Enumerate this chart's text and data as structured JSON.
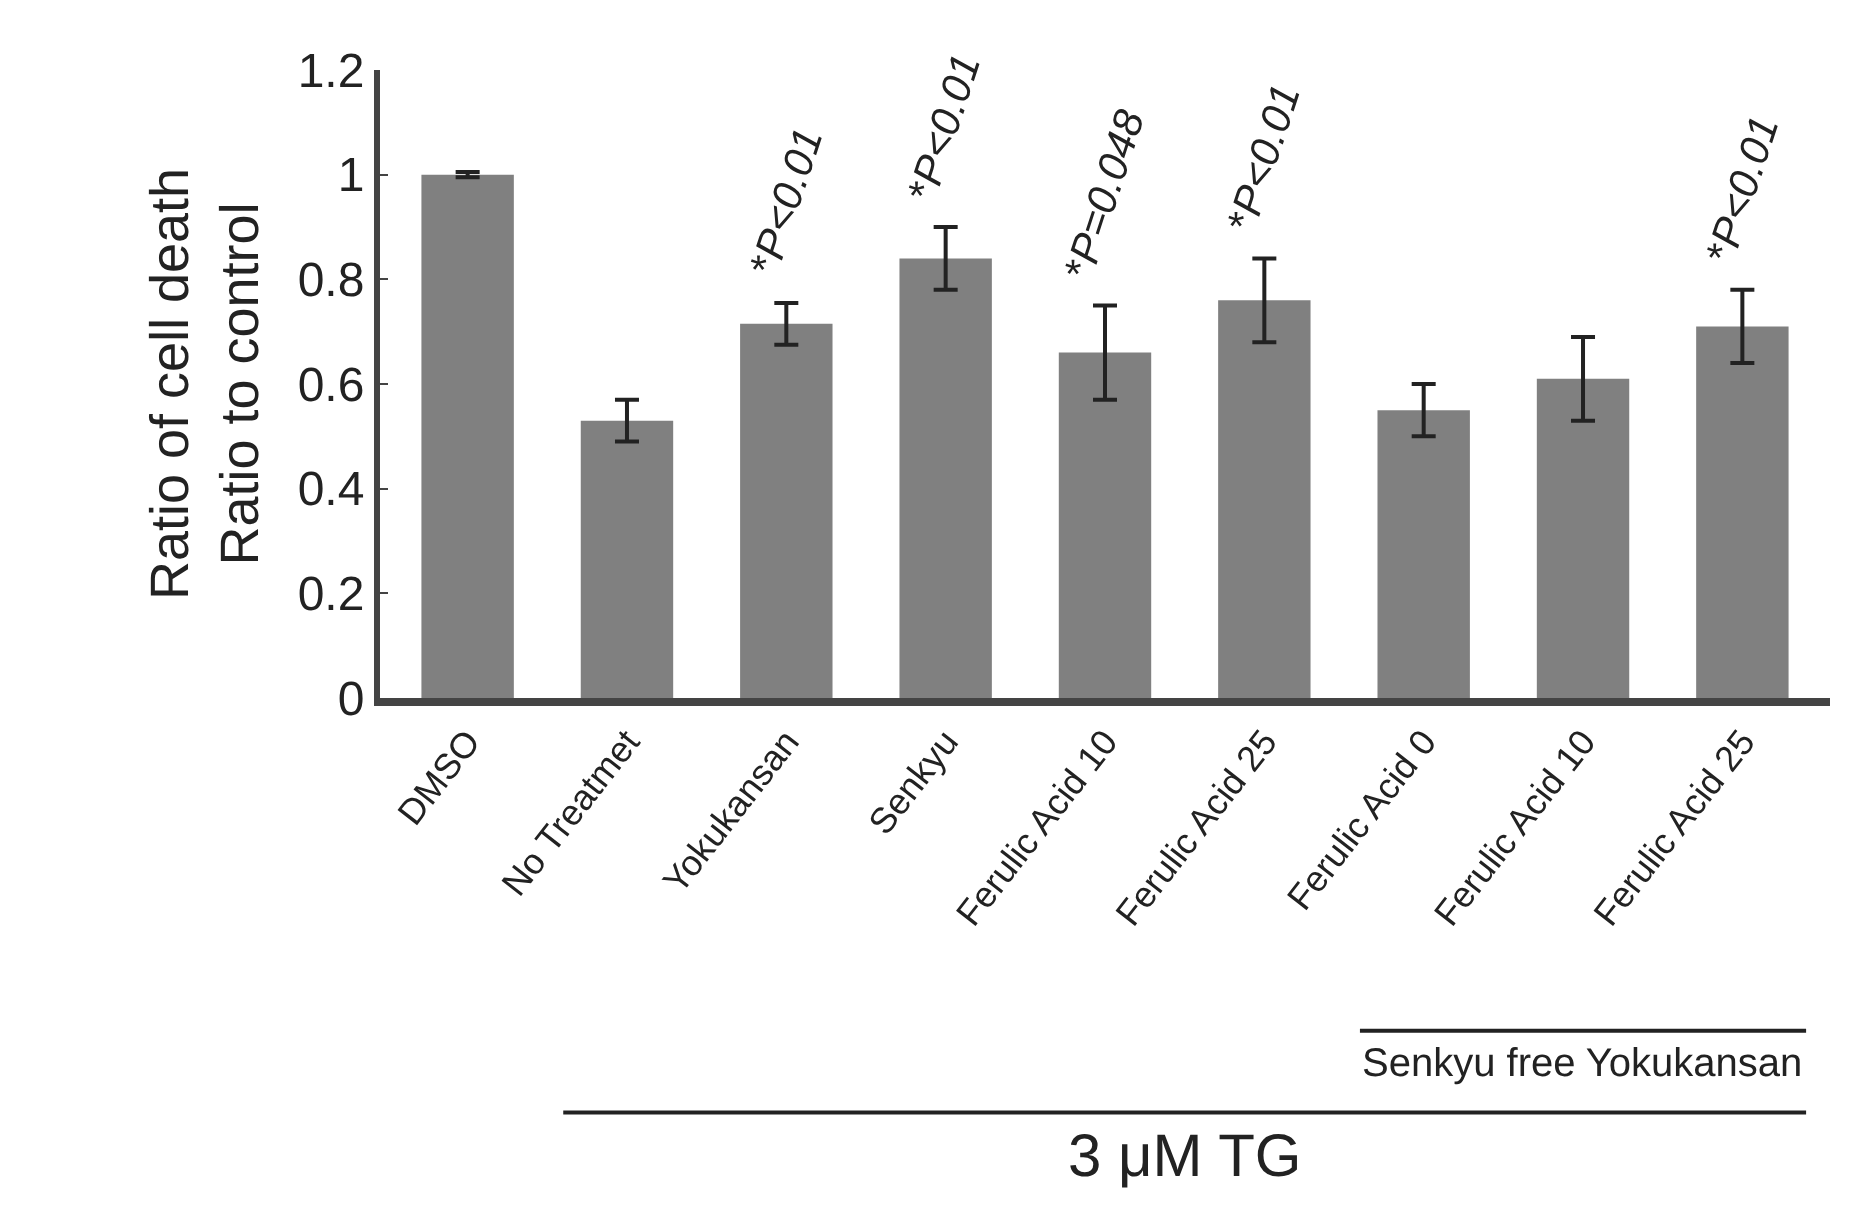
{
  "chart_data": {
    "type": "bar",
    "ylabel": "Ratio of cell death\nRatio to control",
    "categories": [
      "DMSO",
      "No Treatmet",
      "Yokukansan",
      "Senkyu",
      "Ferulic Acid 10",
      "Ferulic Acid 25",
      "Ferulic Acid 0",
      "Ferulic Acid 10",
      "Ferulic Acid 25"
    ],
    "values": [
      1.0,
      0.53,
      0.715,
      0.84,
      0.66,
      0.76,
      0.55,
      0.61,
      0.71
    ],
    "errors": [
      0.005,
      0.04,
      0.04,
      0.06,
      0.09,
      0.08,
      0.05,
      0.08,
      0.07
    ],
    "color": "#808080",
    "ylim": [
      0,
      1.2
    ],
    "yticks": [
      0,
      0.2,
      0.4,
      0.6,
      0.8,
      1,
      1.2
    ],
    "annotations": [
      {
        "text": "*P<0.01",
        "x": "Yokukansan",
        "y": 0.757
      },
      {
        "text": "*P<0.01",
        "x": "Senkyu",
        "y": 0.9
      },
      {
        "text": "*P=0.048",
        "x": "Ferulic Acid 10",
        "y": 0.75
      },
      {
        "text": "*P<0.01",
        "x": "Ferulic Acid 25",
        "y": 0.84
      },
      "*P<0.01",
      "Senkyu free Yokukansan",
      "3 μM TG"
    ]
  }
}
